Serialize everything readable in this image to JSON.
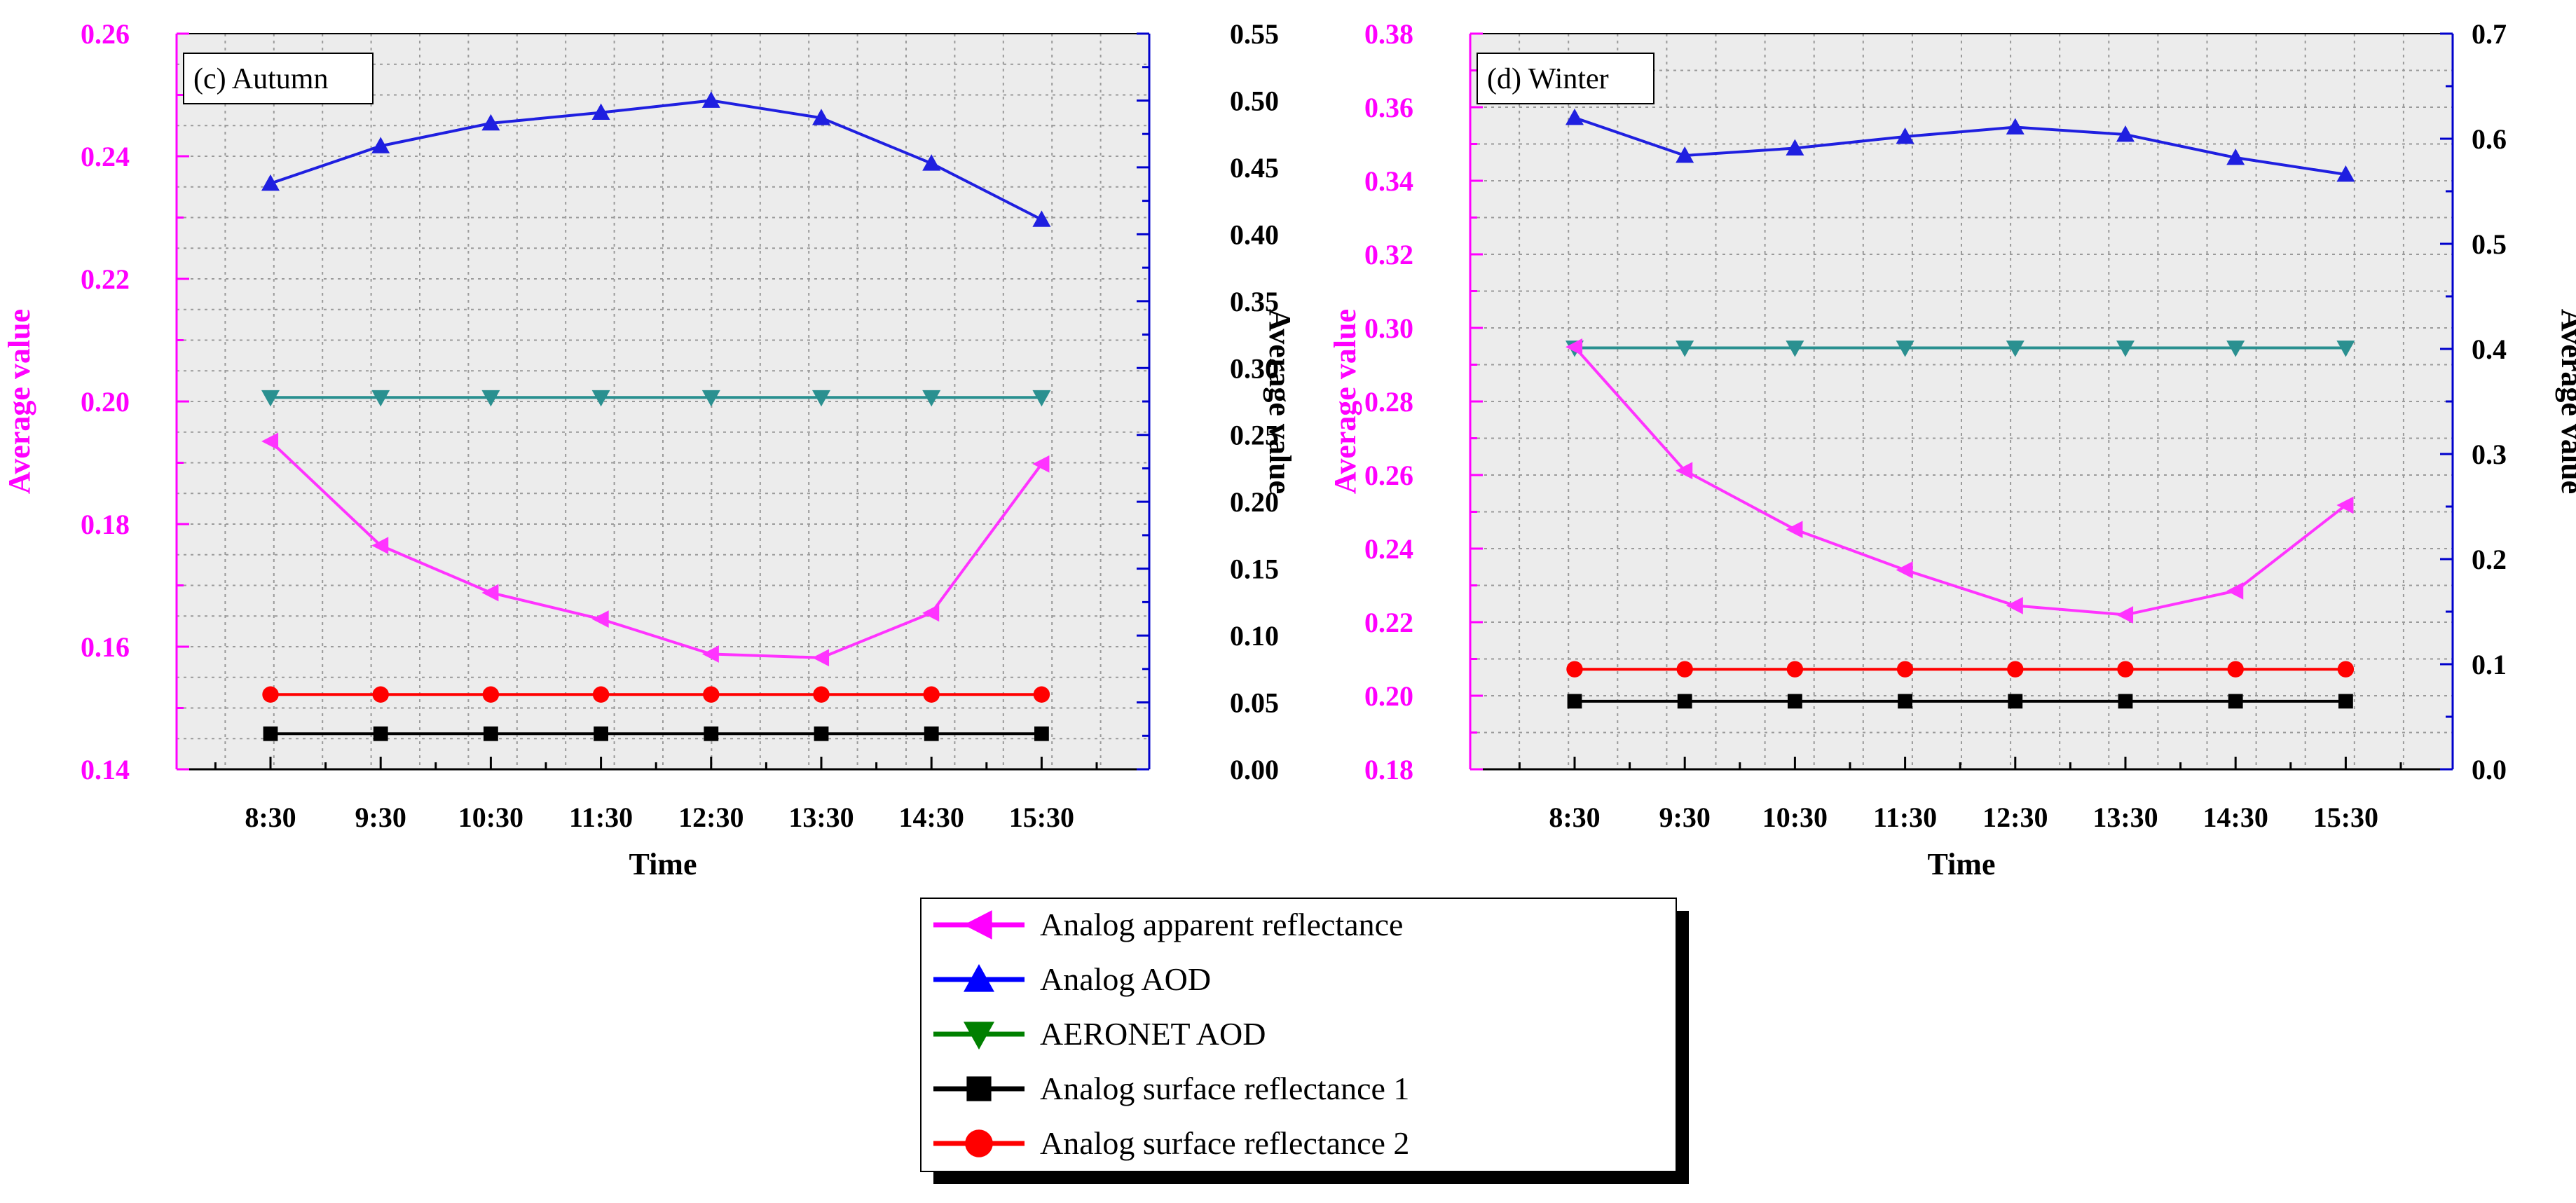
{
  "chart_data": [
    {
      "type": "line",
      "panel_label": "(c) Autumn",
      "categories": [
        "8:30",
        "9:30",
        "10:30",
        "11:30",
        "12:30",
        "13:30",
        "14:30",
        "15:30"
      ],
      "xlabel": "Time",
      "ylabel_left": "Average value",
      "ylabel_right": "Average value",
      "ylim_left": [
        0.14,
        0.26
      ],
      "yticks_left": [
        "0.14",
        "0.16",
        "0.18",
        "0.20",
        "0.22",
        "0.24",
        "0.26"
      ],
      "ylim_right": [
        0.0,
        0.55
      ],
      "yticks_right": [
        "0.00",
        "0.05",
        "0.10",
        "0.15",
        "0.20",
        "0.25",
        "0.30",
        "0.35",
        "0.40",
        "0.45",
        "0.50",
        "0.55"
      ],
      "grid": true,
      "series": [
        {
          "name": "Analog apparent reflectance",
          "axis": "left",
          "values": [
            0.1935,
            0.1765,
            0.1688,
            0.1645,
            0.1588,
            0.1582,
            0.1655,
            0.1898
          ]
        },
        {
          "name": "Analog AOD",
          "axis": "right",
          "values": [
            0.438,
            0.466,
            0.483,
            0.491,
            0.5,
            0.487,
            0.453,
            0.411
          ]
        },
        {
          "name": "AERONET AOD",
          "axis": "right",
          "values": [
            0.278,
            0.278,
            0.278,
            0.278,
            0.278,
            0.278,
            0.278,
            0.278
          ]
        },
        {
          "name": "Analog surface reflectance 1",
          "axis": "left",
          "values": [
            0.1458,
            0.1458,
            0.1458,
            0.1458,
            0.1458,
            0.1458,
            0.1458,
            0.1458
          ]
        },
        {
          "name": "Analog surface reflectance 2",
          "axis": "left",
          "values": [
            0.1522,
            0.1522,
            0.1522,
            0.1522,
            0.1522,
            0.1522,
            0.1522,
            0.1522
          ]
        }
      ]
    },
    {
      "type": "line",
      "panel_label": "(d) Winter",
      "categories": [
        "8:30",
        "9:30",
        "10:30",
        "11:30",
        "12:30",
        "13:30",
        "14:30",
        "15:30"
      ],
      "xlabel": "Time",
      "ylabel_left": "Average value",
      "ylabel_right": "Average value",
      "ylim_left": [
        0.18,
        0.38
      ],
      "yticks_left": [
        "0.18",
        "0.20",
        "0.22",
        "0.24",
        "0.26",
        "0.28",
        "0.30",
        "0.32",
        "0.34",
        "0.36",
        "0.38"
      ],
      "ylim_right": [
        0.0,
        0.7
      ],
      "yticks_right": [
        "0.0",
        "0.1",
        "0.2",
        "0.3",
        "0.4",
        "0.5",
        "0.6",
        "0.7"
      ],
      "grid": true,
      "series": [
        {
          "name": "Analog apparent reflectance",
          "axis": "left",
          "values": [
            0.2948,
            0.2612,
            0.2452,
            0.2342,
            0.2245,
            0.222,
            0.2285,
            0.2518
          ]
        },
        {
          "name": "Analog AOD",
          "axis": "right",
          "values": [
            0.62,
            0.584,
            0.591,
            0.602,
            0.611,
            0.604,
            0.582,
            0.566
          ]
        },
        {
          "name": "AERONET AOD",
          "axis": "right",
          "values": [
            0.401,
            0.401,
            0.401,
            0.401,
            0.401,
            0.401,
            0.401,
            0.401
          ]
        },
        {
          "name": "Analog surface reflectance 1",
          "axis": "left",
          "values": [
            0.1985,
            0.1985,
            0.1985,
            0.1985,
            0.1985,
            0.1985,
            0.1985,
            0.1985
          ]
        },
        {
          "name": "Analog surface reflectance 2",
          "axis": "left",
          "values": [
            0.2072,
            0.2072,
            0.2072,
            0.2072,
            0.2072,
            0.2072,
            0.2072,
            0.2072
          ]
        }
      ]
    }
  ],
  "legend": {
    "items": [
      {
        "label": "Analog apparent reflectance",
        "color": "#ff00ff",
        "marker": "triangle-left"
      },
      {
        "label": "Analog AOD",
        "color": "#0000ff",
        "marker": "triangle-up"
      },
      {
        "label": "AERONET AOD",
        "color": "#008000",
        "marker": "triangle-down"
      },
      {
        "label": "Analog surface reflectance 1",
        "color": "#000000",
        "marker": "square"
      },
      {
        "label": "Analog surface reflectance 2",
        "color": "#ff0000",
        "marker": "circle"
      }
    ]
  },
  "colors": {
    "left_axis": "#ff00ff",
    "right_axis": "#0000cc",
    "apparent": "#ff33ff",
    "aod": "#1f1fe0",
    "aeronet_line": "#2a9090",
    "aeronet_marker": "#2a9090",
    "surface1": "#000000",
    "surface2": "#ff0000",
    "plot_bg": "#ececec",
    "grid": "#9a9a9a"
  }
}
